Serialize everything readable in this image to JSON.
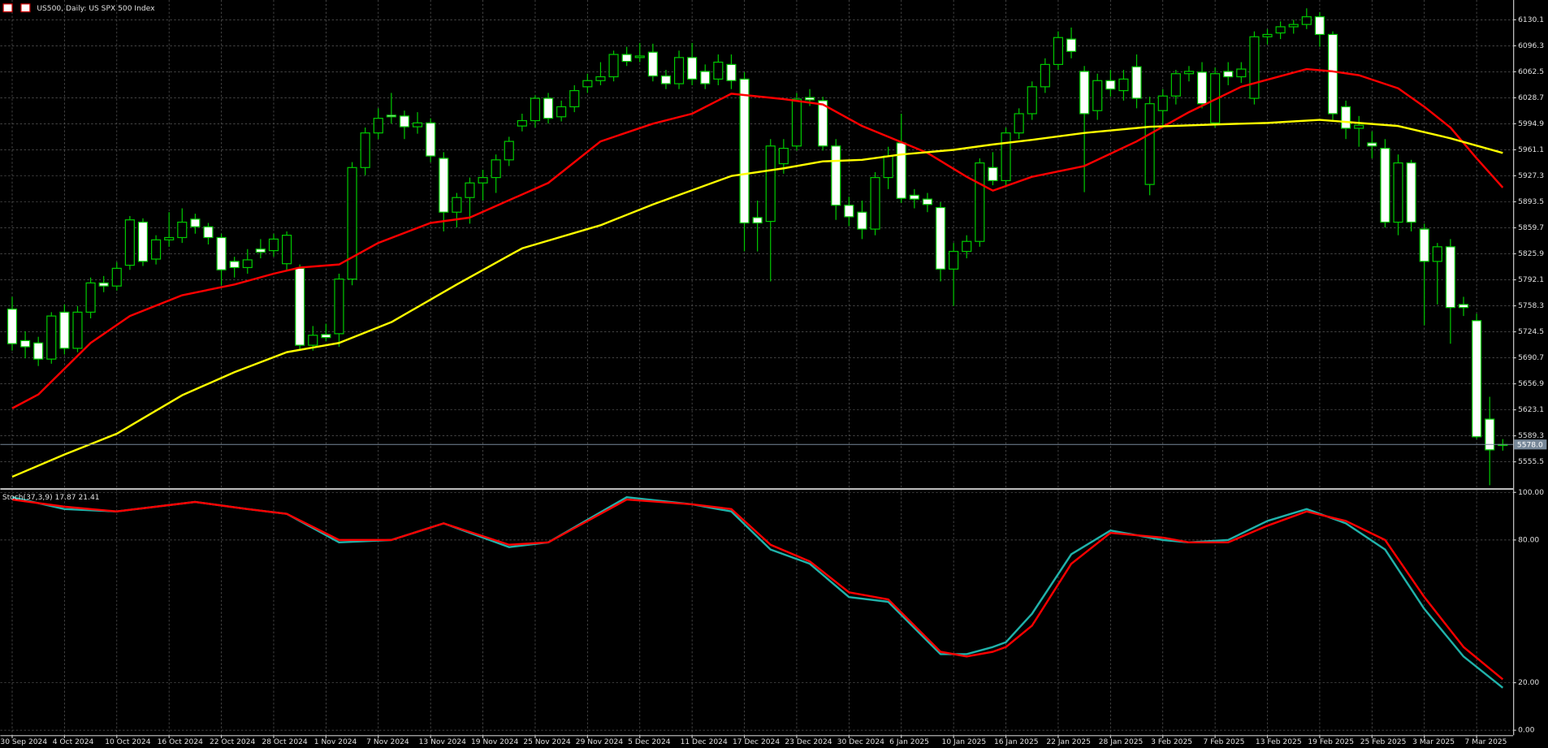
{
  "chart_data": [
    {
      "type": "candlestick",
      "title": "US500, Daily:  US SPX 500 Index",
      "categories": [
        "30 Sep 2024",
        null,
        null,
        null,
        "4 Oct 2024",
        null,
        null,
        null,
        "10 Oct 2024",
        null,
        null,
        null,
        "16 Oct 2024",
        null,
        null,
        null,
        "22 Oct 2024",
        null,
        null,
        null,
        "28 Oct 2024",
        null,
        null,
        null,
        "1 Nov 2024",
        null,
        null,
        null,
        "7 Nov 2024",
        null,
        null,
        null,
        "13 Nov 2024",
        null,
        null,
        null,
        "19 Nov 2024",
        null,
        null,
        null,
        "25 Nov 2024",
        null,
        null,
        null,
        "29 Nov 2024",
        null,
        null,
        null,
        "5 Dec 2024",
        null,
        null,
        null,
        "11 Dec 2024",
        null,
        null,
        null,
        "17 Dec 2024",
        null,
        null,
        null,
        "23 Dec 2024",
        null,
        null,
        null,
        "30 Dec 2024",
        null,
        null,
        null,
        "6 Jan 2025",
        null,
        null,
        null,
        "10 Jan 2025",
        null,
        null,
        null,
        "16 Jan 2025",
        null,
        null,
        null,
        "22 Jan 2025",
        null,
        null,
        null,
        "28 Jan 2025",
        null,
        null,
        null,
        "3 Feb 2025",
        null,
        null,
        null,
        "7 Feb 2025",
        null,
        null,
        null,
        "13 Feb 2025",
        null,
        null,
        null,
        "19 Feb 2025",
        null,
        null,
        null,
        "25 Feb 2025",
        null,
        null,
        null,
        "3 Mar 2025",
        null,
        null,
        null,
        "7 Mar 2025",
        null,
        null
      ],
      "open": [
        5754,
        5713,
        5710,
        5689,
        5750,
        5703,
        5750,
        5788,
        5784,
        5811,
        5867,
        5819,
        5844,
        5847,
        5871,
        5861,
        5847,
        5816,
        5808,
        5832,
        5830,
        5813,
        5807,
        5707,
        5721,
        5722,
        5793,
        5938,
        5983,
        6006,
        6005,
        5991,
        5996,
        5950,
        5880,
        5899,
        5918,
        5925,
        5948,
        5992,
        5999,
        6028,
        6004,
        6017,
        6043,
        6051,
        6056,
        6085,
        6081,
        6088,
        6057,
        6047,
        6081,
        6063,
        6053,
        6072,
        6053,
        5873,
        5868,
        5943,
        5966,
        6029,
        6025,
        5966,
        5889,
        5880,
        5858,
        5925,
        5970,
        5902,
        5897,
        5886,
        5806,
        5829,
        5842,
        5938,
        5921,
        5983,
        6008,
        6043,
        6072,
        6105,
        6063,
        6012,
        6051,
        6038,
        6069,
        5916,
        6012,
        6031,
        6060,
        6062,
        5996,
        6063,
        6056,
        6028,
        6108,
        6113,
        6121,
        6124,
        6134,
        6111,
        6017,
        5989,
        5970,
        5963,
        5867,
        5944,
        5858,
        5816,
        5835,
        5760,
        5739,
        5611,
        5577
      ],
      "high": [
        5770,
        5725,
        5718,
        5750,
        5760,
        5758,
        5795,
        5797,
        5815,
        5875,
        5872,
        5850,
        5880,
        5885,
        5878,
        5866,
        5852,
        5822,
        5832,
        5845,
        5852,
        5855,
        5812,
        5732,
        5735,
        5800,
        5945,
        5990,
        6015,
        6035,
        6012,
        6010,
        6002,
        5958,
        5905,
        5925,
        5935,
        5955,
        5978,
        6008,
        6032,
        6035,
        6025,
        6045,
        6060,
        6075,
        6090,
        6095,
        6100,
        6099,
        6065,
        6090,
        6100,
        6072,
        6085,
        6085,
        6062,
        5895,
        5975,
        5975,
        6035,
        6040,
        6030,
        5975,
        5900,
        5895,
        5932,
        5965,
        6008,
        5910,
        5905,
        5893,
        5840,
        5850,
        5950,
        5958,
        5990,
        6015,
        6050,
        6080,
        6115,
        6120,
        6070,
        6060,
        6065,
        6065,
        6085,
        6030,
        6040,
        6065,
        6070,
        6075,
        6068,
        6075,
        6075,
        6115,
        6118,
        6128,
        6130,
        6145,
        6140,
        6115,
        6025,
        6005,
        5985,
        5975,
        5955,
        5948,
        5865,
        5840,
        5845,
        5770,
        5748,
        5640,
        5585
      ],
      "low": [
        5700,
        5690,
        5680,
        5683,
        5695,
        5698,
        5742,
        5776,
        5778,
        5805,
        5810,
        5812,
        5835,
        5840,
        5852,
        5838,
        5785,
        5795,
        5800,
        5820,
        5822,
        5805,
        5700,
        5700,
        5712,
        5705,
        5785,
        5928,
        5975,
        5995,
        5975,
        5982,
        5945,
        5855,
        5860,
        5865,
        5895,
        5905,
        5940,
        5985,
        5990,
        5995,
        5998,
        6010,
        6035,
        6045,
        6050,
        6070,
        6075,
        6050,
        6040,
        6040,
        6045,
        6040,
        6045,
        6040,
        5829,
        5829,
        5790,
        5930,
        5960,
        6018,
        5960,
        5870,
        5862,
        5845,
        5850,
        5910,
        5892,
        5885,
        5880,
        5790,
        5758,
        5820,
        5835,
        5915,
        5915,
        5975,
        6000,
        6035,
        6065,
        6080,
        5906,
        6000,
        6030,
        6025,
        6015,
        5902,
        5990,
        6020,
        6050,
        6015,
        5990,
        6045,
        6048,
        6020,
        6098,
        6105,
        6112,
        6118,
        6095,
        6000,
        5975,
        5965,
        5950,
        5860,
        5850,
        5855,
        5733,
        5760,
        5709,
        5745,
        5585,
        5525,
        5570
      ],
      "close": [
        5709,
        5705,
        5689,
        5745,
        5703,
        5750,
        5788,
        5784,
        5807,
        5870,
        5816,
        5844,
        5847,
        5867,
        5861,
        5847,
        5805,
        5808,
        5818,
        5828,
        5845,
        5850,
        5707,
        5720,
        5717,
        5793,
        5938,
        5983,
        6002,
        6004,
        5991,
        5996,
        5953,
        5880,
        5899,
        5918,
        5925,
        5948,
        5972,
        5999,
        6028,
        6002,
        6017,
        6038,
        6051,
        6056,
        6085,
        6076,
        6083,
        6057,
        6047,
        6081,
        6053,
        6047,
        6075,
        6051,
        5866,
        5866,
        5966,
        5963,
        6027,
        6026,
        5966,
        5889,
        5874,
        5858,
        5925,
        5953,
        5898,
        5897,
        5890,
        5806,
        5829,
        5842,
        5944,
        5921,
        5983,
        6008,
        6043,
        6072,
        6107,
        6089,
        6008,
        6051,
        6040,
        6053,
        6028,
        6021,
        6031,
        6060,
        6063,
        6021,
        6060,
        6056,
        6066,
        6108,
        6111,
        6121,
        6124,
        6134,
        6111,
        6008,
        5989,
        5993,
        5966,
        5867,
        5944,
        5867,
        5816,
        5835,
        5756,
        5756,
        5588,
        5571,
        5578
      ],
      "up_color": "#00c800",
      "down_color": "#ffffff",
      "lines": [
        {
          "color": "#ff0000",
          "x": [
            0,
            2,
            6,
            9,
            13,
            17,
            20,
            22,
            25,
            28,
            32,
            35,
            41,
            45,
            49,
            52,
            55,
            59,
            62,
            65,
            70,
            73,
            75,
            78,
            82,
            86,
            90,
            94,
            99,
            101,
            103,
            106,
            108,
            110,
            112,
            114
          ],
          "values": [
            5625,
            5643,
            5710,
            5745,
            5772,
            5786,
            5800,
            5808,
            5812,
            5840,
            5866,
            5873,
            5918,
            5972,
            5995,
            6008,
            6034,
            6027,
            6020,
            5992,
            5957,
            5926,
            5908,
            5926,
            5940,
            5972,
            6010,
            6043,
            6066,
            6063,
            6058,
            6041,
            6017,
            5990,
            5950,
            5912
          ]
        },
        {
          "color": "#ffff00",
          "x": [
            0,
            4,
            8,
            13,
            17,
            21,
            25,
            29,
            34,
            39,
            45,
            49,
            55,
            59,
            62,
            65,
            68,
            72,
            75,
            78,
            82,
            87,
            92,
            96,
            100,
            103,
            106,
            110,
            114
          ],
          "values": [
            5536,
            5565,
            5592,
            5642,
            5672,
            5698,
            5710,
            5737,
            5786,
            5833,
            5863,
            5890,
            5927,
            5937,
            5946,
            5948,
            5955,
            5961,
            5968,
            5974,
            5983,
            5991,
            5994,
            5996,
            6000,
            5996,
            5992,
            5976,
            5957
          ]
        }
      ],
      "last_price": {
        "value": 5578.0,
        "label": "5578.0"
      },
      "last_price_color": "#778899",
      "ylim": [
        5522.1,
        6155.8
      ],
      "yticks": [
        6130.1,
        6096.3,
        6062.5,
        6028.7,
        5994.9,
        5961.1,
        5927.3,
        5893.5,
        5859.7,
        5825.9,
        5792.1,
        5758.3,
        5724.5,
        5690.7,
        5656.9,
        5623.1,
        5589.3,
        5555.5
      ],
      "grid": true
    },
    {
      "type": "line",
      "title": "Stoch(37,3,9) 17.87 21.41",
      "series": [
        {
          "color": "#20b2aa",
          "x": [
            0,
            4,
            8,
            14,
            18,
            21,
            25,
            29,
            33,
            38,
            41,
            47,
            52,
            55,
            58,
            61,
            64,
            67,
            71,
            73,
            75,
            76,
            78,
            81,
            84,
            88,
            90,
            93,
            96,
            99,
            102,
            105,
            108,
            111,
            114
          ],
          "values": [
            98,
            93,
            92,
            96,
            93,
            91,
            79,
            80,
            87,
            77,
            79,
            98,
            95,
            92,
            76,
            70,
            56,
            54,
            32,
            32,
            35,
            37,
            49,
            74,
            84,
            80,
            79,
            80,
            88,
            93,
            87,
            76,
            51,
            31,
            17.87
          ]
        },
        {
          "color": "#ff0000",
          "x": [
            0,
            4,
            8,
            14,
            18,
            21,
            25,
            29,
            33,
            38,
            41,
            47,
            52,
            55,
            58,
            61,
            64,
            67,
            71,
            73,
            75,
            76,
            78,
            81,
            84,
            88,
            90,
            93,
            96,
            99,
            102,
            105,
            108,
            111,
            114
          ],
          "values": [
            97,
            94,
            92,
            96,
            93,
            91,
            80,
            80,
            87,
            78,
            79,
            97,
            95,
            93,
            78,
            71,
            58,
            55,
            33,
            31,
            33,
            35,
            44,
            70,
            83,
            81,
            79,
            79,
            86,
            92,
            88,
            80,
            56,
            35,
            21.41
          ]
        }
      ],
      "ylim": [
        0,
        100
      ],
      "yticks": [
        {
          "value": 100,
          "label": "100.00"
        },
        {
          "value": 80,
          "label": "80.00"
        },
        {
          "value": 20,
          "label": "20.00"
        },
        {
          "value": 0,
          "label": "0.00"
        }
      ],
      "grid": true
    }
  ]
}
